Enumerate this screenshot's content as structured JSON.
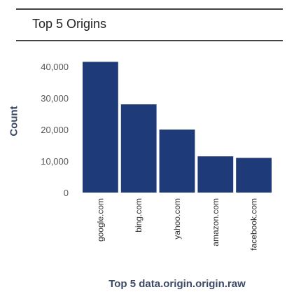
{
  "panel": {
    "title": "Top 5 Origins"
  },
  "chart_data": {
    "type": "bar",
    "title": "Top 5 Origins",
    "xlabel": "Top 5 data.origin.origin.raw",
    "ylabel": "Count",
    "categories": [
      "google.com",
      "bing.com",
      "yahoo.com",
      "amazon.com",
      "facebook.com"
    ],
    "values": [
      41500,
      28000,
      20000,
      11500,
      11000
    ],
    "ylim": [
      0,
      40000
    ],
    "yticks": [
      0,
      10000,
      20000,
      30000,
      40000
    ],
    "ytick_labels": [
      "0",
      "10,000",
      "20,000",
      "30,000",
      "40,000"
    ],
    "bar_color": "#1f3a78",
    "grid": false,
    "legend": "none"
  }
}
